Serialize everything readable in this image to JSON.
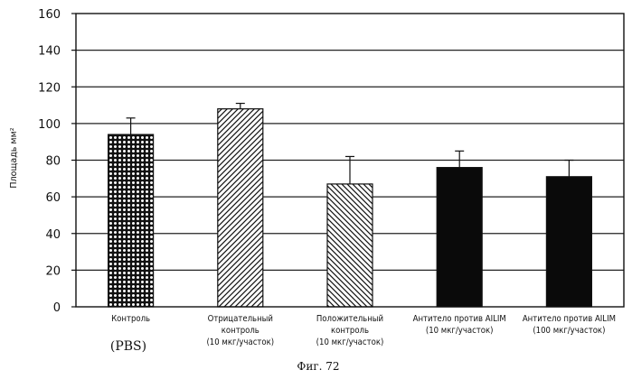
{
  "chart_data": {
    "type": "bar",
    "ylabel": "Площадь мм²",
    "ylim": [
      0,
      160
    ],
    "yticks": [
      0,
      20,
      40,
      60,
      80,
      100,
      120,
      140,
      160
    ],
    "grid": true,
    "categories": [
      [
        "Контроль"
      ],
      [
        "Отрицательный",
        "контроль",
        "(10 мкг/участок)"
      ],
      [
        "Положительный",
        "контроль",
        "(10 мкг/участок)"
      ],
      [
        "Антитело против AILIM",
        "(10 мкг/участок)"
      ],
      [
        "Антитело против AILIM",
        "(100 мкг/участок)"
      ]
    ],
    "values": [
      94,
      108,
      67,
      76,
      71
    ],
    "errors": [
      9,
      3,
      15,
      9,
      9
    ],
    "patterns": [
      "dots",
      "hatch-up",
      "hatch-down",
      "solid",
      "solid"
    ],
    "sublabel": "(PBS)",
    "caption": "Фиг. 72"
  }
}
